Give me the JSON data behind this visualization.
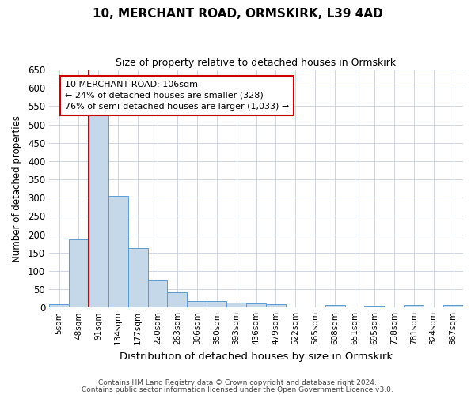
{
  "title": "10, MERCHANT ROAD, ORMSKIRK, L39 4AD",
  "subtitle": "Size of property relative to detached houses in Ormskirk",
  "xlabel": "Distribution of detached houses by size in Ormskirk",
  "ylabel": "Number of detached properties",
  "footnote1": "Contains HM Land Registry data © Crown copyright and database right 2024.",
  "footnote2": "Contains public sector information licensed under the Open Government Licence v3.0.",
  "annotation_title": "10 MERCHANT ROAD: 106sqm",
  "annotation_line1": "← 24% of detached houses are smaller (328)",
  "annotation_line2": "76% of semi-detached houses are larger (1,033) →",
  "bar_labels": [
    "5sqm",
    "48sqm",
    "91sqm",
    "134sqm",
    "177sqm",
    "220sqm",
    "263sqm",
    "306sqm",
    "350sqm",
    "393sqm",
    "436sqm",
    "479sqm",
    "522sqm",
    "565sqm",
    "608sqm",
    "651sqm",
    "695sqm",
    "738sqm",
    "781sqm",
    "824sqm",
    "867sqm"
  ],
  "bar_values": [
    10,
    185,
    535,
    305,
    163,
    73,
    41,
    17,
    18,
    13,
    11,
    10,
    0,
    0,
    6,
    0,
    5,
    0,
    6,
    0,
    6
  ],
  "bar_color": "#c5d8ea",
  "bar_edge_color": "#5b9bd5",
  "vline_x": 1.5,
  "vline_color": "#cc0000",
  "ylim": [
    0,
    650
  ],
  "yticks": [
    0,
    50,
    100,
    150,
    200,
    250,
    300,
    350,
    400,
    450,
    500,
    550,
    600,
    650
  ],
  "annotation_box_color": "#cc0000",
  "background_color": "#ffffff",
  "grid_color": "#c8cfe0"
}
